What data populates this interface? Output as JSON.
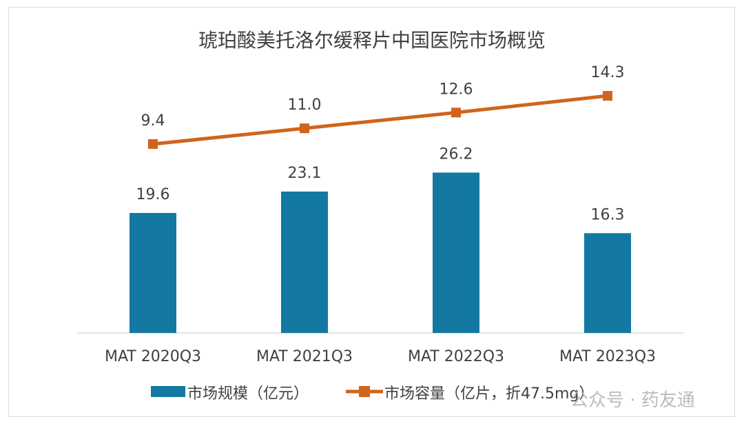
{
  "chart_data": {
    "type": "bar+line",
    "title": "琥珀酸美托洛尔缓释片中国医院市场概览",
    "categories": [
      "MAT 2020Q3",
      "MAT 2021Q3",
      "MAT 2022Q3",
      "MAT 2023Q3"
    ],
    "series": [
      {
        "name": "市场规模（亿元）",
        "type": "bar",
        "axis": "primary",
        "color": "#1379a3",
        "values": [
          19.6,
          23.1,
          26.2,
          16.3
        ],
        "labels": [
          "19.6",
          "23.1",
          "26.2",
          "16.3"
        ]
      },
      {
        "name": "市场容量（亿片，折47.5mg）",
        "type": "line",
        "axis": "secondary",
        "color": "#d0641c",
        "values": [
          9.4,
          11.0,
          12.6,
          14.3
        ],
        "labels": [
          "9.4",
          "11.0",
          "12.6",
          "14.3"
        ]
      }
    ],
    "xlabel": "",
    "ylabel": "",
    "grid": false,
    "legend": "bottom"
  },
  "watermark": "公众号 · 药友通"
}
